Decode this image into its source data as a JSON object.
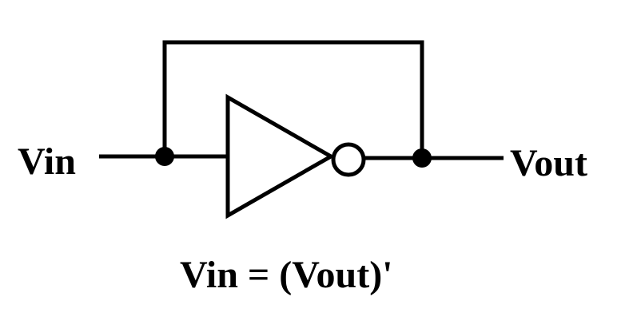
{
  "labels": {
    "input": "Vin",
    "output": "Vout",
    "equation": "Vin = (Vout)'"
  },
  "colors": {
    "stroke": "#000000",
    "background": "#ffffff"
  },
  "components": {
    "gate": "inverter-icon",
    "input_junction": "junction-dot",
    "output_junction": "junction-dot"
  }
}
